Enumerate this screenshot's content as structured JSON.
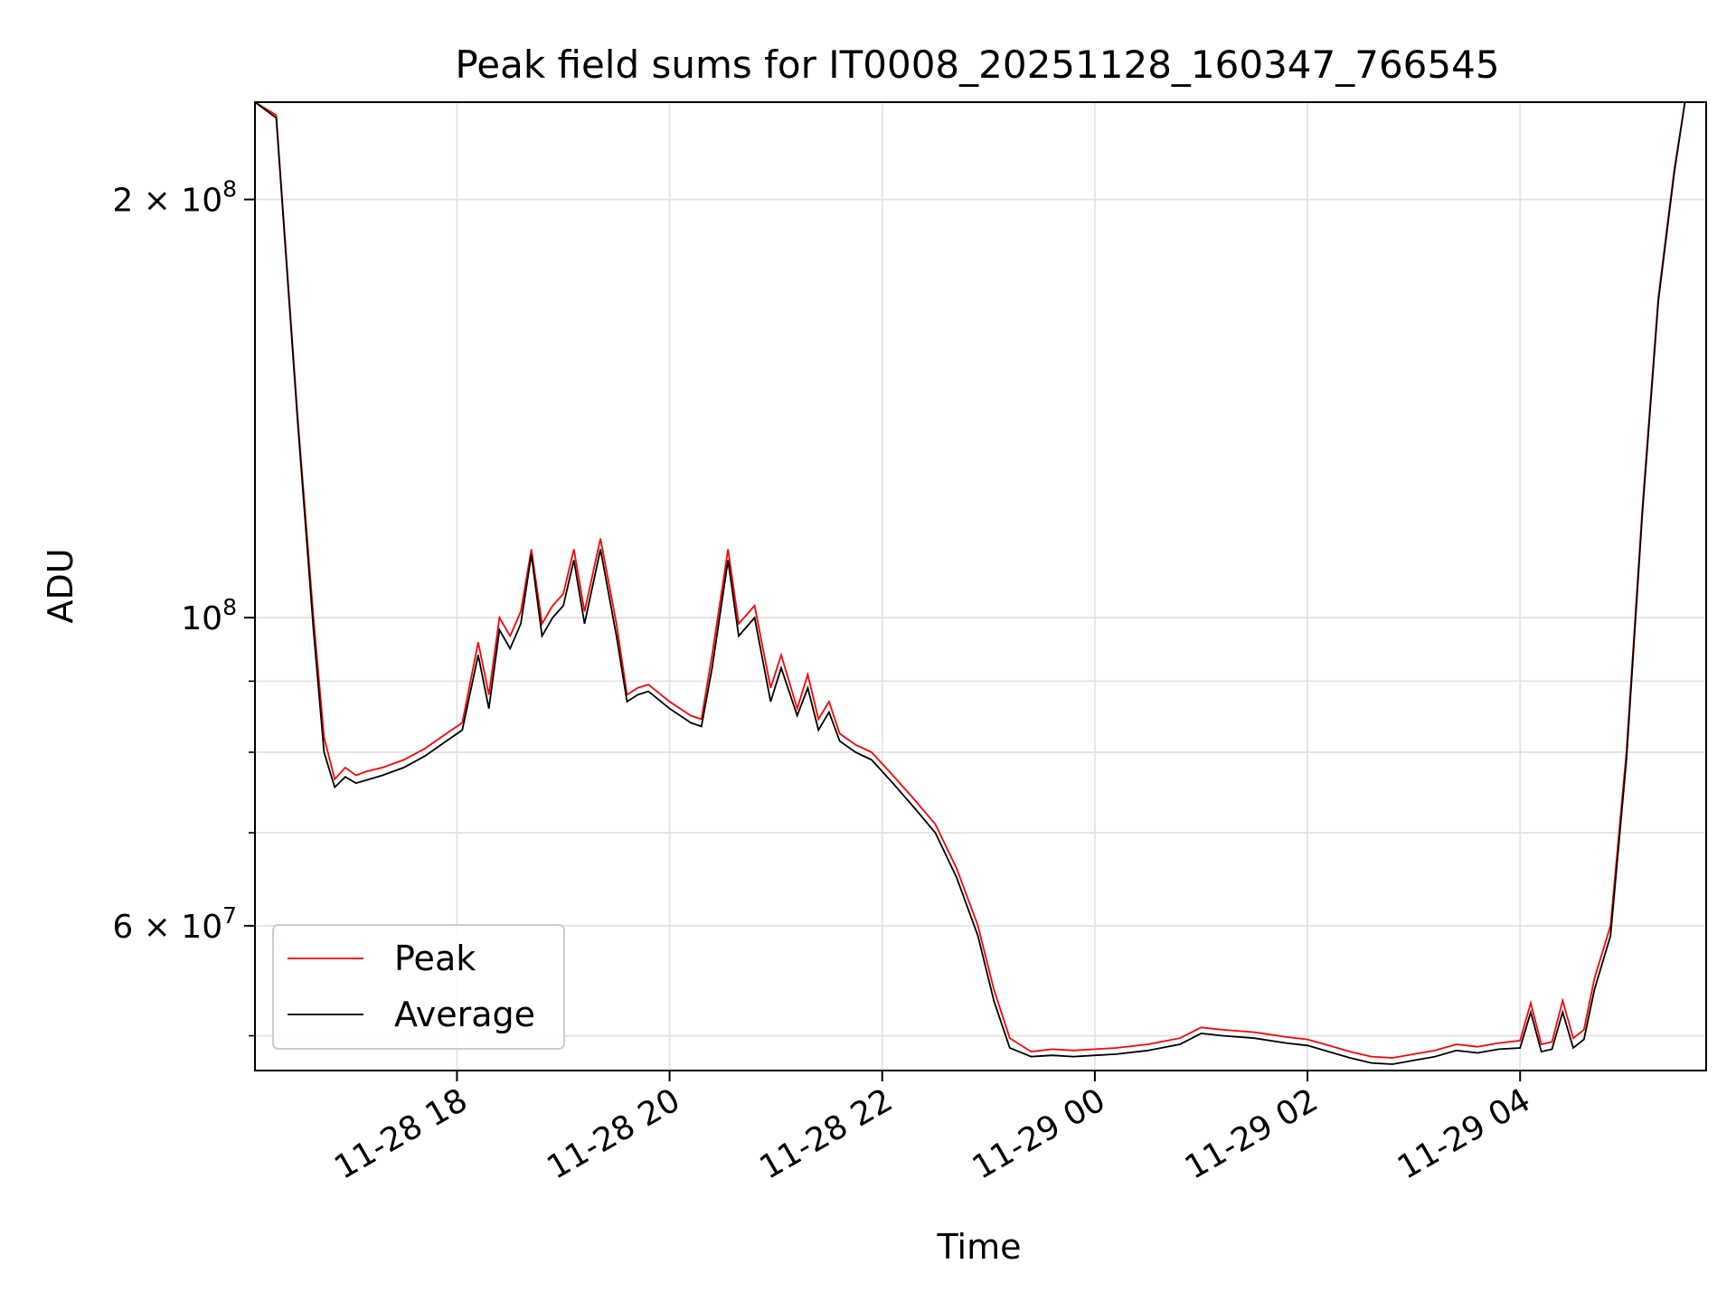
{
  "chart_data": {
    "type": "line",
    "title": "Peak field sums for IT0008_20251128_160347_766545",
    "xlabel": "Time",
    "ylabel": "ADU",
    "yscale": "log",
    "ylim": [
      47200000,
      235000000
    ],
    "xlim_hours": [
      16.1,
      29.75
    ],
    "grid": true,
    "legend_position": "lower-left",
    "x_ticks": [
      {
        "hour": 18,
        "label": "11-28 18"
      },
      {
        "hour": 20,
        "label": "11-28 20"
      },
      {
        "hour": 22,
        "label": "11-28 22"
      },
      {
        "hour": 24,
        "label": "11-29 00"
      },
      {
        "hour": 26,
        "label": "11-29 02"
      },
      {
        "hour": 28,
        "label": "11-29 04"
      }
    ],
    "y_major_ticks": [
      {
        "value": 60000000,
        "base": "6",
        "exp": "7"
      },
      {
        "value": 100000000,
        "base": "",
        "exp": "8"
      },
      {
        "value": 200000000,
        "base": "2",
        "exp": "8"
      }
    ],
    "y_minor_ticks": [
      50000000,
      70000000,
      80000000,
      90000000
    ],
    "x_unit": "hours since 2025-11-28 00:00",
    "series": [
      {
        "name": "Peak",
        "color": "#ff0000",
        "x": [
          16.1,
          16.3,
          16.5,
          16.65,
          16.75,
          16.85,
          16.95,
          17.05,
          17.15,
          17.3,
          17.5,
          17.7,
          17.9,
          18.05,
          18.2,
          18.3,
          18.4,
          18.5,
          18.6,
          18.7,
          18.8,
          18.9,
          19.0,
          19.1,
          19.2,
          19.35,
          19.5,
          19.6,
          19.7,
          19.8,
          20.0,
          20.2,
          20.3,
          20.4,
          20.55,
          20.65,
          20.8,
          20.95,
          21.05,
          21.2,
          21.3,
          21.4,
          21.5,
          21.6,
          21.75,
          21.9,
          22.1,
          22.3,
          22.5,
          22.7,
          22.9,
          23.05,
          23.2,
          23.4,
          23.6,
          23.8,
          24.0,
          24.2,
          24.5,
          24.8,
          25.0,
          25.2,
          25.5,
          25.8,
          26.0,
          26.2,
          26.4,
          26.6,
          26.8,
          27.0,
          27.2,
          27.4,
          27.6,
          27.8,
          28.0,
          28.1,
          28.2,
          28.3,
          28.4,
          28.5,
          28.6,
          28.7,
          28.85,
          29.0,
          29.15,
          29.3,
          29.45,
          29.55,
          29.65,
          29.75
        ],
        "y": [
          235000000,
          230000000,
          140000000,
          100000000,
          82000000,
          76500000,
          78000000,
          77000000,
          77500000,
          78000000,
          79000000,
          80500000,
          82500000,
          84000000,
          96000000,
          88000000,
          100000000,
          97000000,
          101000000,
          112000000,
          99000000,
          102000000,
          104000000,
          112000000,
          101000000,
          114000000,
          99000000,
          88000000,
          89000000,
          89500000,
          87000000,
          85000000,
          84500000,
          94000000,
          112000000,
          99000000,
          102000000,
          89000000,
          94000000,
          86000000,
          91000000,
          84500000,
          87000000,
          82500000,
          81000000,
          80000000,
          77000000,
          74000000,
          71000000,
          66000000,
          60000000,
          54000000,
          49800000,
          48700000,
          48900000,
          48800000,
          48900000,
          49000000,
          49300000,
          49800000,
          50700000,
          50500000,
          50300000,
          49900000,
          49700000,
          49200000,
          48700000,
          48300000,
          48200000,
          48500000,
          48800000,
          49300000,
          49100000,
          49400000,
          49600000,
          52800000,
          49300000,
          49500000,
          53000000,
          49800000,
          50500000,
          55000000,
          60000000,
          80000000,
          120000000,
          170000000,
          210000000,
          235000000,
          235000000,
          235000000
        ]
      },
      {
        "name": "Average",
        "color": "#000000",
        "x": [
          16.1,
          16.3,
          16.5,
          16.65,
          16.75,
          16.85,
          16.95,
          17.05,
          17.15,
          17.3,
          17.5,
          17.7,
          17.9,
          18.05,
          18.2,
          18.3,
          18.4,
          18.5,
          18.6,
          18.7,
          18.8,
          18.9,
          19.0,
          19.1,
          19.2,
          19.35,
          19.5,
          19.6,
          19.7,
          19.8,
          20.0,
          20.2,
          20.3,
          20.4,
          20.55,
          20.65,
          20.8,
          20.95,
          21.05,
          21.2,
          21.3,
          21.4,
          21.5,
          21.6,
          21.75,
          21.9,
          22.1,
          22.3,
          22.5,
          22.7,
          22.9,
          23.05,
          23.2,
          23.4,
          23.6,
          23.8,
          24.0,
          24.2,
          24.5,
          24.8,
          25.0,
          25.2,
          25.5,
          25.8,
          26.0,
          26.2,
          26.4,
          26.6,
          26.8,
          27.0,
          27.2,
          27.4,
          27.6,
          27.8,
          28.0,
          28.1,
          28.2,
          28.3,
          28.4,
          28.5,
          28.6,
          28.7,
          28.85,
          29.0,
          29.15,
          29.3,
          29.45,
          29.55,
          29.65,
          29.75
        ],
        "y": [
          235000000,
          229000000,
          139000000,
          98000000,
          80000000,
          75500000,
          76800000,
          76000000,
          76400000,
          77000000,
          78000000,
          79500000,
          81500000,
          83000000,
          94000000,
          86000000,
          98000000,
          95000000,
          99000000,
          111000000,
          97000000,
          100000000,
          102000000,
          110000000,
          99000000,
          112000000,
          97000000,
          87000000,
          88000000,
          88500000,
          86000000,
          84000000,
          83500000,
          92000000,
          110000000,
          97000000,
          100000000,
          87000000,
          92000000,
          85000000,
          89000000,
          83000000,
          85500000,
          81500000,
          80000000,
          79000000,
          76000000,
          73000000,
          70000000,
          65000000,
          59000000,
          53000000,
          49000000,
          48300000,
          48400000,
          48300000,
          48400000,
          48500000,
          48800000,
          49300000,
          50200000,
          50000000,
          49800000,
          49400000,
          49200000,
          48700000,
          48200000,
          47800000,
          47700000,
          48000000,
          48300000,
          48800000,
          48600000,
          48900000,
          49000000,
          52000000,
          48700000,
          48900000,
          52000000,
          49000000,
          49700000,
          54000000,
          59000000,
          79000000,
          119000000,
          169000000,
          209000000,
          235000000,
          235000000,
          235000000
        ]
      }
    ]
  }
}
